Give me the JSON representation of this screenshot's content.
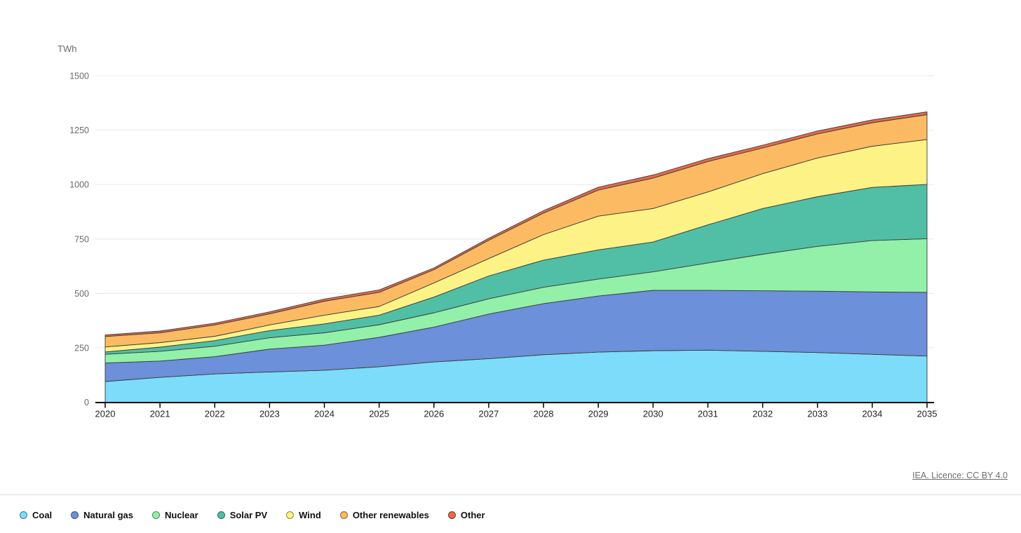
{
  "unit_label": "TWh",
  "footer": {
    "licence_text": "IEA. Licence: CC BY 4.0"
  },
  "colors": {
    "grid": "#e8e8e8",
    "axis": "#000000",
    "band_stroke": "#3c3c3c",
    "y_tick_label": "#6a6a6a",
    "x_tick_label": "#1f1f1f"
  },
  "chart_data": {
    "type": "area",
    "stacked": true,
    "title": "",
    "xlabel": "",
    "ylabel": "TWh",
    "x": [
      2020,
      2021,
      2022,
      2023,
      2024,
      2025,
      2026,
      2027,
      2028,
      2029,
      2030,
      2031,
      2032,
      2033,
      2034,
      2035
    ],
    "ylim": [
      0,
      1500
    ],
    "yticks": [
      0,
      250,
      500,
      750,
      1000,
      1250,
      1500
    ],
    "grid": "horizontal",
    "legend_position": "bottom-left",
    "series": [
      {
        "name": "Coal",
        "color": "#7cdcfa",
        "values": [
          95,
          114,
          130,
          139,
          147,
          163,
          185,
          200,
          218,
          230,
          237,
          239,
          234,
          228,
          220,
          212
        ]
      },
      {
        "name": "Natural gas",
        "color": "#6c90d9",
        "values": [
          85,
          75,
          79,
          105,
          115,
          135,
          160,
          205,
          235,
          258,
          277,
          275,
          278,
          282,
          287,
          293
        ]
      },
      {
        "name": "Nuclear",
        "color": "#92f0a9",
        "values": [
          40,
          45,
          48,
          52,
          57,
          58,
          66,
          70,
          75,
          78,
          85,
          126,
          168,
          206,
          236,
          246
        ]
      },
      {
        "name": "Solar PV",
        "color": "#50bfa5",
        "values": [
          11,
          19,
          26,
          33,
          41,
          44,
          72,
          105,
          125,
          134,
          137,
          175,
          210,
          228,
          244,
          250
        ]
      },
      {
        "name": "Wind",
        "color": "#fdf285",
        "values": [
          23,
          21,
          20,
          26,
          40,
          40,
          65,
          80,
          117,
          155,
          154,
          151,
          160,
          178,
          189,
          206
        ]
      },
      {
        "name": "Other renewables",
        "color": "#fcba63",
        "values": [
          48,
          45,
          52,
          51,
          64,
          65,
          61,
          84,
          99,
          120,
          140,
          140,
          118,
          111,
          108,
          114
        ]
      },
      {
        "name": "Other",
        "color": "#e5694c",
        "values": [
          7,
          8,
          8,
          9,
          10,
          11,
          8,
          9,
          11,
          13,
          14,
          13,
          13,
          13,
          13,
          13
        ]
      }
    ]
  }
}
